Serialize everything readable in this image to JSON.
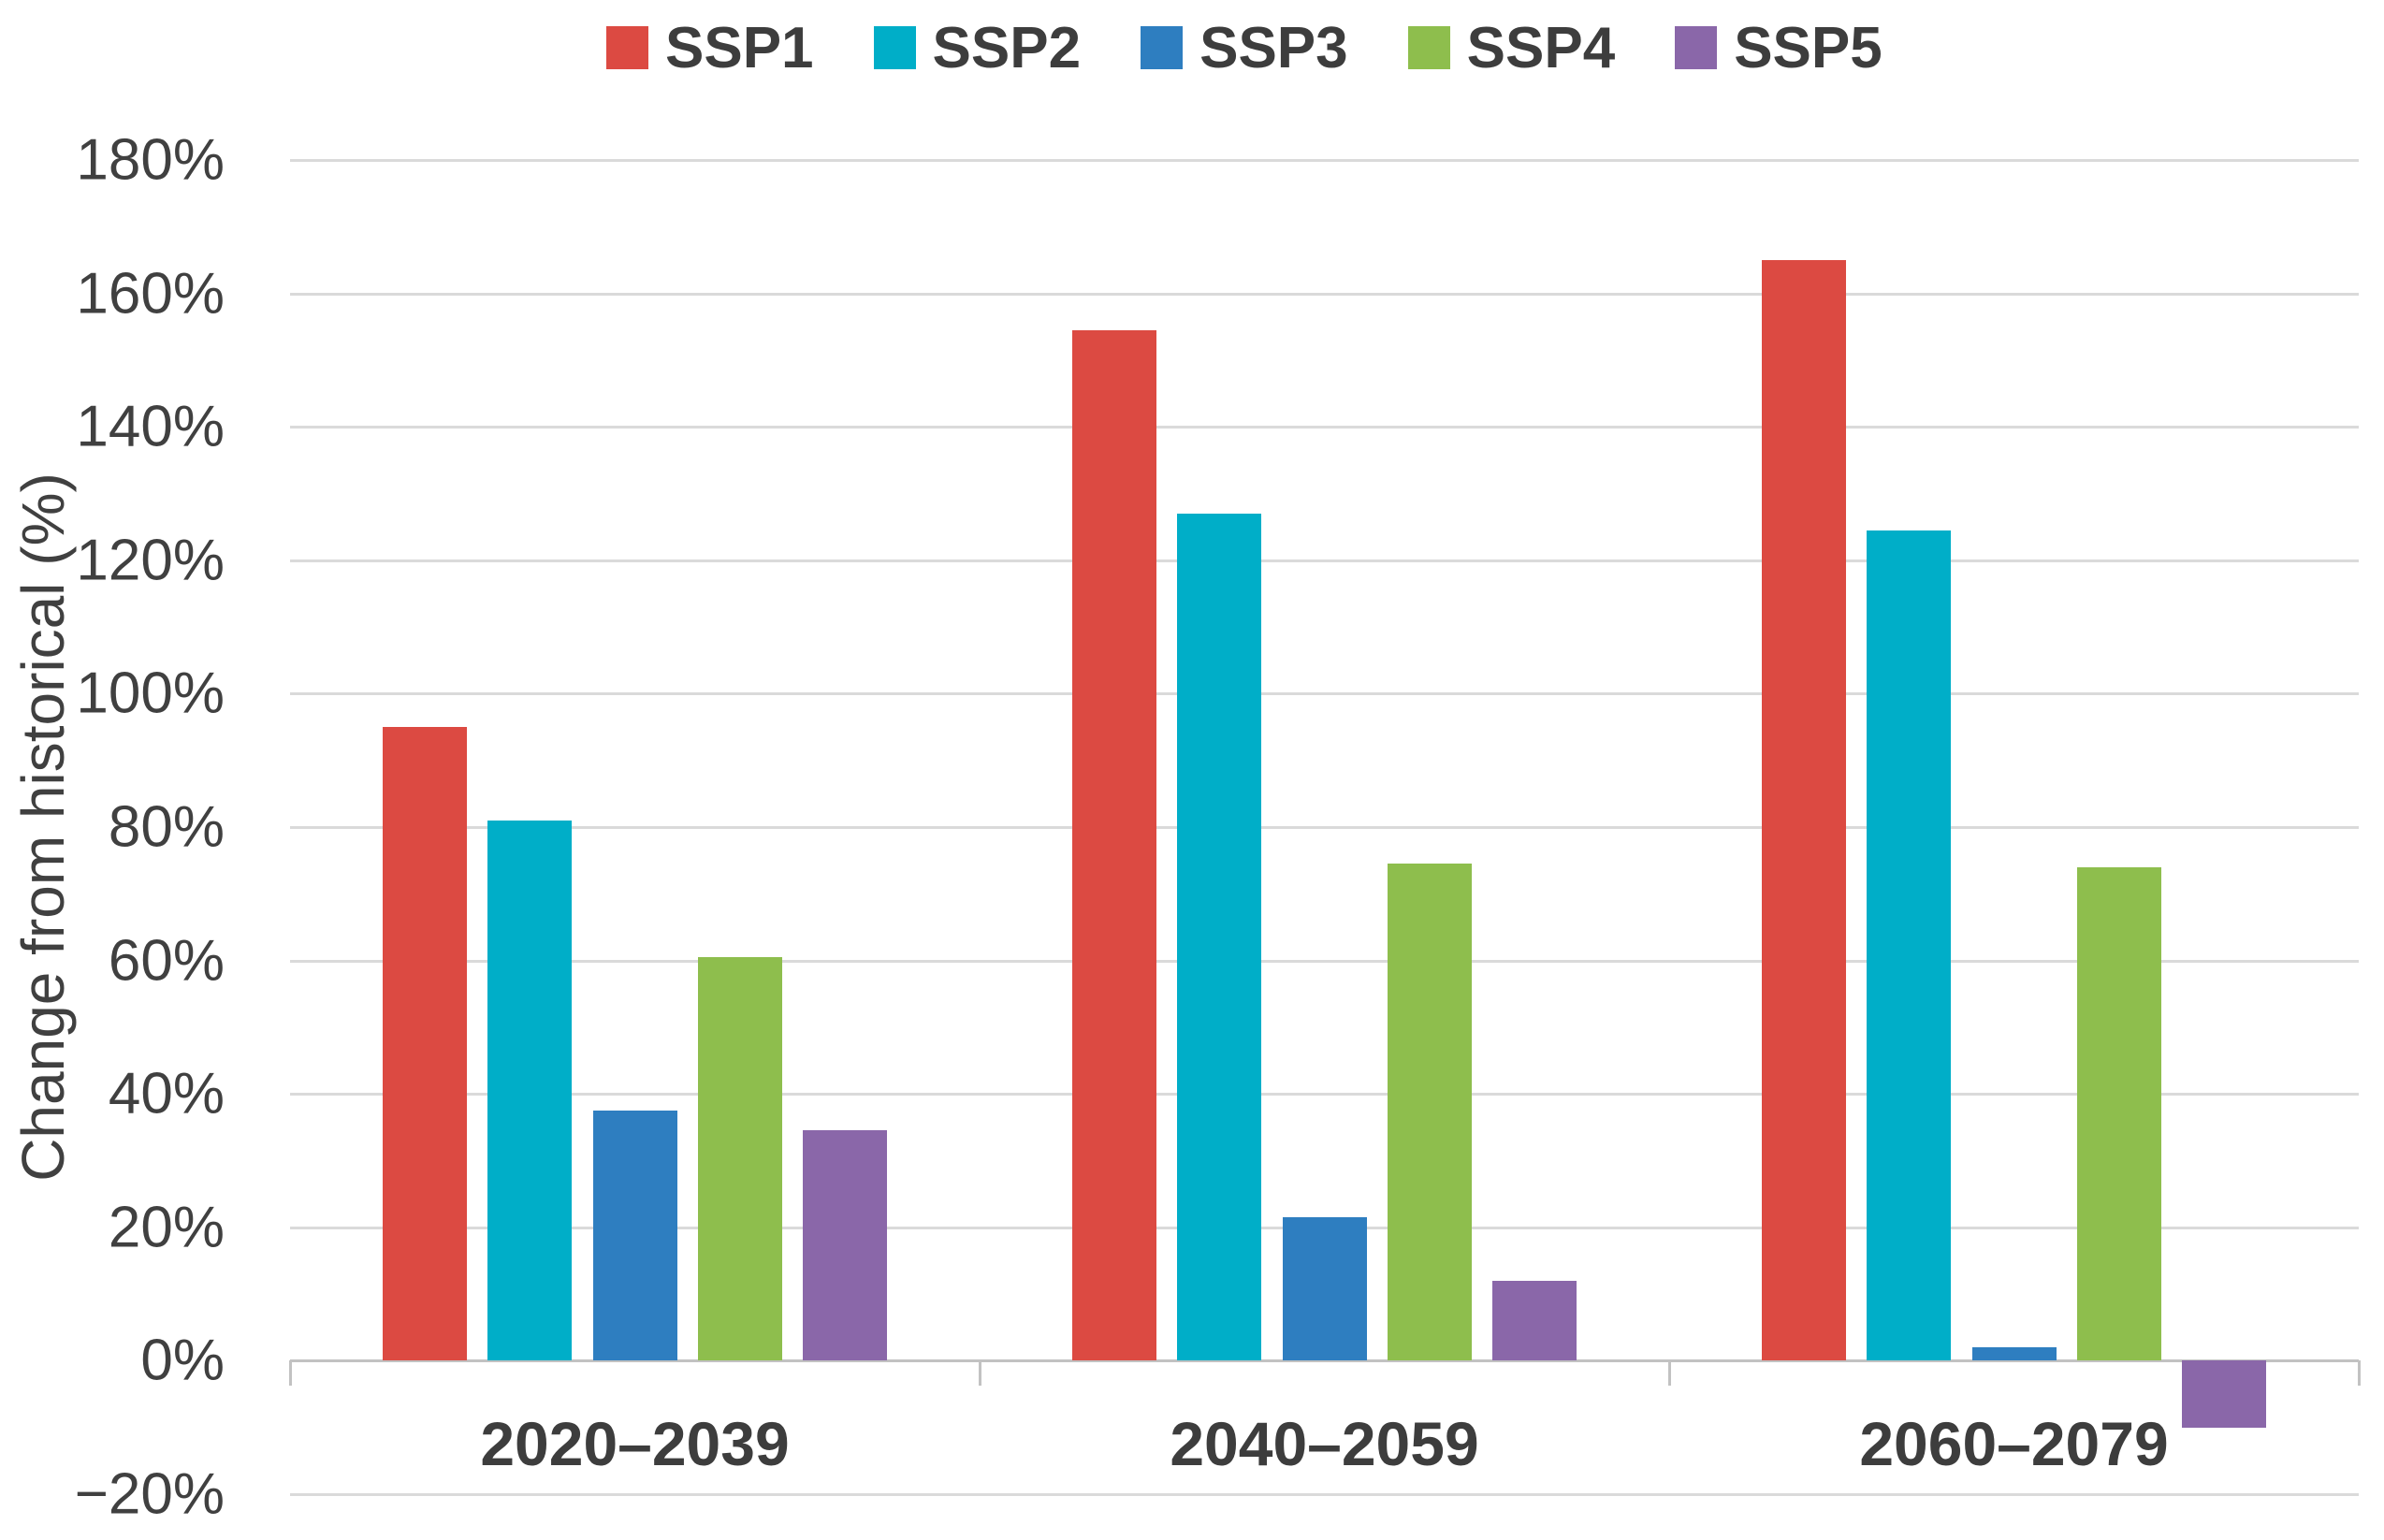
{
  "chart_data": {
    "type": "bar",
    "title": "",
    "categories": [
      "2020–2039",
      "2040–2059",
      "2060–2079"
    ],
    "series": [
      {
        "name": "SSP1",
        "color": "#dc4a42",
        "values": [
          95,
          154.5,
          165
        ]
      },
      {
        "name": "SSP2",
        "color": "#00aec8",
        "values": [
          81,
          127,
          124.5
        ]
      },
      {
        "name": "SSP3",
        "color": "#2e7ec0",
        "values": [
          37.5,
          21.5,
          2
        ]
      },
      {
        "name": "SSP4",
        "color": "#8ebe4d",
        "values": [
          60.5,
          74.5,
          74
        ]
      },
      {
        "name": "SSP5",
        "color": "#8a67a9",
        "values": [
          34.5,
          12,
          -10
        ]
      }
    ],
    "ylabel": "Change from historical (%)",
    "ylim": [
      -20,
      180
    ],
    "y_tick_step": 20,
    "y_tick_labels": [
      "180%",
      "160%",
      "140%",
      "120%",
      "100%",
      "80%",
      "60%",
      "40%",
      "20%",
      "0%",
      "−20%"
    ],
    "grid": true,
    "legend_position": "top",
    "colors": {
      "gridline": "#dadada",
      "axis_line": "#c2c2c2",
      "text": "#404040"
    }
  }
}
